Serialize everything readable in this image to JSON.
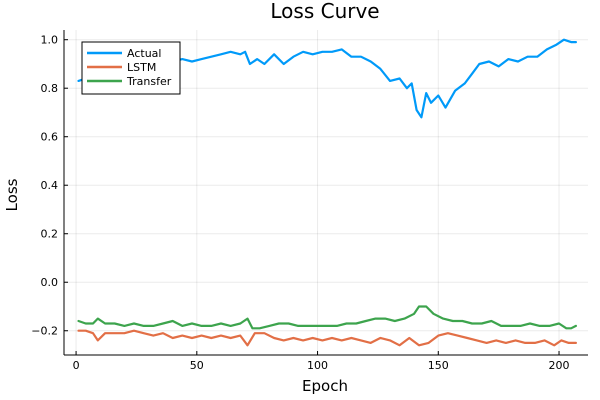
{
  "chart_data": {
    "type": "line",
    "title": "Loss Curve",
    "xlabel": "Epoch",
    "ylabel": "Loss",
    "xlim": [
      -5,
      212
    ],
    "ylim": [
      -0.3,
      1.04
    ],
    "xticks": [
      0,
      50,
      100,
      150,
      200
    ],
    "yticks": [
      -0.2,
      0.0,
      0.2,
      0.4,
      0.6,
      0.8,
      1.0
    ],
    "grid": true,
    "legend_position": "top-left",
    "series": [
      {
        "name": "Actual",
        "color": "#009af9",
        "points": [
          [
            1,
            0.83
          ],
          [
            4,
            0.84
          ],
          [
            8,
            0.9
          ],
          [
            12,
            0.93
          ],
          [
            16,
            0.92
          ],
          [
            20,
            0.93
          ],
          [
            24,
            0.94
          ],
          [
            28,
            0.92
          ],
          [
            32,
            0.93
          ],
          [
            36,
            0.92
          ],
          [
            40,
            0.91
          ],
          [
            44,
            0.92
          ],
          [
            48,
            0.91
          ],
          [
            52,
            0.92
          ],
          [
            56,
            0.93
          ],
          [
            60,
            0.94
          ],
          [
            64,
            0.95
          ],
          [
            68,
            0.94
          ],
          [
            70,
            0.95
          ],
          [
            72,
            0.9
          ],
          [
            75,
            0.92
          ],
          [
            78,
            0.9
          ],
          [
            82,
            0.94
          ],
          [
            86,
            0.9
          ],
          [
            90,
            0.93
          ],
          [
            94,
            0.95
          ],
          [
            98,
            0.94
          ],
          [
            102,
            0.95
          ],
          [
            106,
            0.95
          ],
          [
            110,
            0.96
          ],
          [
            114,
            0.93
          ],
          [
            118,
            0.93
          ],
          [
            122,
            0.91
          ],
          [
            126,
            0.88
          ],
          [
            130,
            0.83
          ],
          [
            134,
            0.84
          ],
          [
            137,
            0.8
          ],
          [
            139,
            0.82
          ],
          [
            141,
            0.71
          ],
          [
            143,
            0.68
          ],
          [
            145,
            0.78
          ],
          [
            147,
            0.74
          ],
          [
            150,
            0.77
          ],
          [
            153,
            0.72
          ],
          [
            157,
            0.79
          ],
          [
            161,
            0.82
          ],
          [
            164,
            0.86
          ],
          [
            167,
            0.9
          ],
          [
            171,
            0.91
          ],
          [
            175,
            0.89
          ],
          [
            179,
            0.92
          ],
          [
            183,
            0.91
          ],
          [
            187,
            0.93
          ],
          [
            191,
            0.93
          ],
          [
            195,
            0.96
          ],
          [
            199,
            0.98
          ],
          [
            202,
            1.0
          ],
          [
            205,
            0.99
          ],
          [
            207,
            0.99
          ]
        ]
      },
      {
        "name": "LSTM",
        "color": "#e26f46",
        "points": [
          [
            1,
            -0.2
          ],
          [
            4,
            -0.2
          ],
          [
            7,
            -0.21
          ],
          [
            9,
            -0.24
          ],
          [
            12,
            -0.21
          ],
          [
            16,
            -0.21
          ],
          [
            20,
            -0.21
          ],
          [
            24,
            -0.2
          ],
          [
            28,
            -0.21
          ],
          [
            32,
            -0.22
          ],
          [
            36,
            -0.21
          ],
          [
            40,
            -0.23
          ],
          [
            44,
            -0.22
          ],
          [
            48,
            -0.23
          ],
          [
            52,
            -0.22
          ],
          [
            56,
            -0.23
          ],
          [
            60,
            -0.22
          ],
          [
            64,
            -0.23
          ],
          [
            68,
            -0.22
          ],
          [
            71,
            -0.26
          ],
          [
            74,
            -0.21
          ],
          [
            78,
            -0.21
          ],
          [
            82,
            -0.23
          ],
          [
            86,
            -0.24
          ],
          [
            90,
            -0.23
          ],
          [
            94,
            -0.24
          ],
          [
            98,
            -0.23
          ],
          [
            102,
            -0.24
          ],
          [
            106,
            -0.23
          ],
          [
            110,
            -0.24
          ],
          [
            114,
            -0.23
          ],
          [
            118,
            -0.24
          ],
          [
            122,
            -0.25
          ],
          [
            126,
            -0.23
          ],
          [
            130,
            -0.24
          ],
          [
            134,
            -0.26
          ],
          [
            138,
            -0.23
          ],
          [
            142,
            -0.26
          ],
          [
            146,
            -0.25
          ],
          [
            150,
            -0.22
          ],
          [
            154,
            -0.21
          ],
          [
            158,
            -0.22
          ],
          [
            162,
            -0.23
          ],
          [
            166,
            -0.24
          ],
          [
            170,
            -0.25
          ],
          [
            174,
            -0.24
          ],
          [
            178,
            -0.25
          ],
          [
            182,
            -0.24
          ],
          [
            186,
            -0.25
          ],
          [
            190,
            -0.25
          ],
          [
            194,
            -0.24
          ],
          [
            198,
            -0.26
          ],
          [
            201,
            -0.24
          ],
          [
            204,
            -0.25
          ],
          [
            207,
            -0.25
          ]
        ]
      },
      {
        "name": "Transfer",
        "color": "#3da44d",
        "points": [
          [
            1,
            -0.16
          ],
          [
            4,
            -0.17
          ],
          [
            7,
            -0.17
          ],
          [
            9,
            -0.15
          ],
          [
            12,
            -0.17
          ],
          [
            16,
            -0.17
          ],
          [
            20,
            -0.18
          ],
          [
            24,
            -0.17
          ],
          [
            28,
            -0.18
          ],
          [
            32,
            -0.18
          ],
          [
            36,
            -0.17
          ],
          [
            40,
            -0.16
          ],
          [
            44,
            -0.18
          ],
          [
            48,
            -0.17
          ],
          [
            52,
            -0.18
          ],
          [
            56,
            -0.18
          ],
          [
            60,
            -0.17
          ],
          [
            64,
            -0.18
          ],
          [
            68,
            -0.17
          ],
          [
            71,
            -0.15
          ],
          [
            73,
            -0.19
          ],
          [
            76,
            -0.19
          ],
          [
            80,
            -0.18
          ],
          [
            84,
            -0.17
          ],
          [
            88,
            -0.17
          ],
          [
            92,
            -0.18
          ],
          [
            96,
            -0.18
          ],
          [
            100,
            -0.18
          ],
          [
            104,
            -0.18
          ],
          [
            108,
            -0.18
          ],
          [
            112,
            -0.17
          ],
          [
            116,
            -0.17
          ],
          [
            120,
            -0.16
          ],
          [
            124,
            -0.15
          ],
          [
            128,
            -0.15
          ],
          [
            132,
            -0.16
          ],
          [
            136,
            -0.15
          ],
          [
            140,
            -0.13
          ],
          [
            142,
            -0.1
          ],
          [
            145,
            -0.1
          ],
          [
            148,
            -0.13
          ],
          [
            152,
            -0.15
          ],
          [
            156,
            -0.16
          ],
          [
            160,
            -0.16
          ],
          [
            164,
            -0.17
          ],
          [
            168,
            -0.17
          ],
          [
            172,
            -0.16
          ],
          [
            176,
            -0.18
          ],
          [
            180,
            -0.18
          ],
          [
            184,
            -0.18
          ],
          [
            188,
            -0.17
          ],
          [
            192,
            -0.18
          ],
          [
            196,
            -0.18
          ],
          [
            200,
            -0.17
          ],
          [
            203,
            -0.19
          ],
          [
            205,
            -0.19
          ],
          [
            207,
            -0.18
          ]
        ]
      }
    ]
  }
}
